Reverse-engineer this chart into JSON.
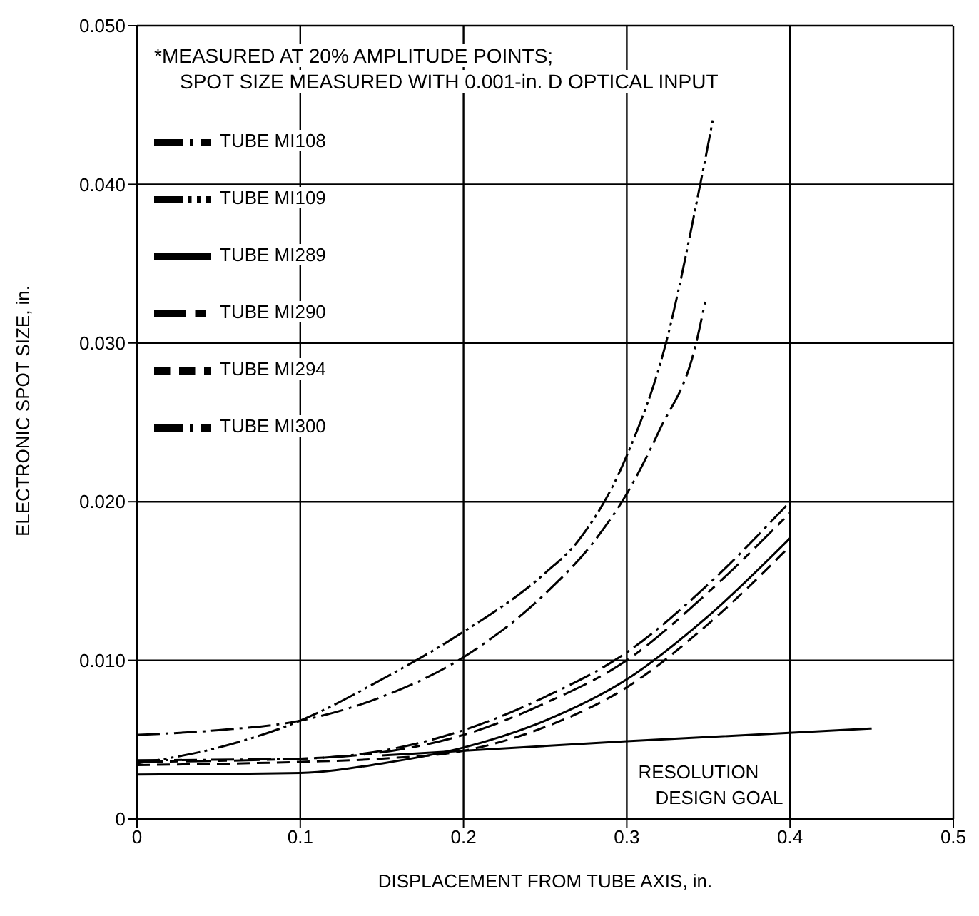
{
  "chart_data": {
    "type": "line",
    "xlabel": "DISPLACEMENT FROM TUBE AXIS,  in.",
    "ylabel": "ELECTRONIC SPOT SIZE, in.",
    "annotations": [
      "*MEASURED AT 20% AMPLITUDE POINTS;",
      "SPOT SIZE MEASURED WITH 0.001-in. D OPTICAL INPUT",
      {
        "text": "RESOLUTION DESIGN GOAL",
        "x": 0.3,
        "y": 0.0049
      }
    ],
    "xlim": [
      0,
      0.5
    ],
    "xticks": [
      0,
      0.1,
      0.2,
      0.3,
      0.4,
      0.5
    ],
    "ylim": [
      0,
      0.05
    ],
    "yticks": [
      0,
      {
        "value": 0.01,
        "label": "0.010"
      },
      {
        "value": 0.02,
        "label": "0.020"
      },
      {
        "value": 0.03,
        "label": "0.030"
      },
      {
        "value": 0.04,
        "label": "0.040"
      },
      {
        "value": 0.05,
        "label": "0.050"
      }
    ],
    "grid": true,
    "legend": "top left",
    "marker": "none",
    "series": [
      {
        "name": "TUBE MI108",
        "color": "#000000",
        "line_style": "dashdot",
        "x": [
          0,
          0.05,
          0.1,
          0.15,
          0.2,
          0.25,
          0.28,
          0.3,
          0.32,
          0.3425,
          0.348
        ],
        "values": [
          0.0053,
          0.0056,
          0.0062,
          0.0077,
          0.0102,
          0.0142,
          0.0175,
          0.0205,
          0.0245,
          0.03,
          0.0326
        ]
      },
      {
        "name": "TUBE MI109",
        "color": "#000000",
        "line_style": "dashdotdot",
        "x": [
          0,
          0.05,
          0.1,
          0.15,
          0.2,
          0.25,
          0.27,
          0.3,
          0.324,
          0.345,
          0.353
        ],
        "values": [
          0.0035,
          0.0045,
          0.0062,
          0.0088,
          0.0118,
          0.0155,
          0.0175,
          0.0229,
          0.03,
          0.04,
          0.0442
        ]
      },
      {
        "name": "TUBE MI289",
        "color": "#000000",
        "line_style": "solid",
        "x": [
          0,
          0.1,
          0.15,
          0.2,
          0.25,
          0.3,
          0.35,
          0.4
        ],
        "values": [
          0.0028,
          0.0029,
          0.0035,
          0.0045,
          0.0062,
          0.0088,
          0.0128,
          0.0177
        ]
      },
      {
        "name": "TUBE MI290",
        "color": "#000000",
        "line_style": "longdash",
        "x": [
          0,
          0.1,
          0.15,
          0.2,
          0.25,
          0.3,
          0.35,
          0.4
        ],
        "values": [
          0.0036,
          0.0038,
          0.0042,
          0.0053,
          0.0073,
          0.01,
          0.0143,
          0.0193
        ]
      },
      {
        "name": "TUBE MI294",
        "color": "#000000",
        "line_style": "dashed",
        "x": [
          0,
          0.1,
          0.15,
          0.2,
          0.25,
          0.3,
          0.35,
          0.4
        ],
        "values": [
          0.0034,
          0.0036,
          0.0038,
          0.0043,
          0.0058,
          0.0083,
          0.0123,
          0.0172
        ]
      },
      {
        "name": "TUBE MI300",
        "color": "#000000",
        "line_style": "dashdot",
        "x": [
          0,
          0.1,
          0.15,
          0.2,
          0.25,
          0.3,
          0.35,
          0.4
        ],
        "values": [
          0.0037,
          0.0038,
          0.0043,
          0.0056,
          0.0077,
          0.0105,
          0.0148,
          0.02
        ]
      },
      {
        "color": "#000000",
        "line_style": "solid",
        "x": [
          0.15,
          0.3,
          0.45
        ],
        "values": [
          0.004,
          0.0049,
          0.0057
        ]
      }
    ]
  }
}
